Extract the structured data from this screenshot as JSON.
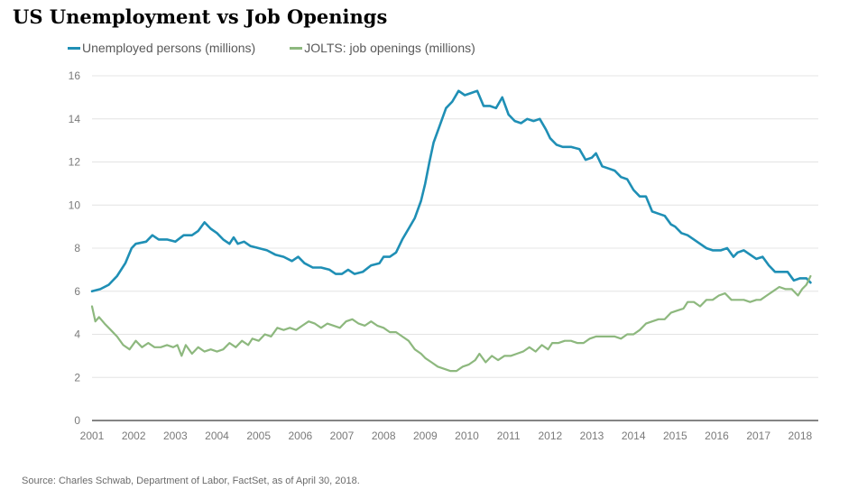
{
  "title": "US Unemployment vs Job Openings",
  "source": "Source: Charles Schwab, Department of Labor, FactSet, as of April 30, 2018.",
  "chart_data": {
    "type": "line",
    "title": "US Unemployment vs Job Openings",
    "xlabel": "",
    "ylabel": "",
    "xlim": [
      2001.0,
      2018.35
    ],
    "ylim": [
      0,
      16
    ],
    "grid": true,
    "legend_position": "top-left",
    "y_ticks": [
      0,
      2,
      4,
      6,
      8,
      10,
      12,
      14,
      16
    ],
    "x_ticks": [
      "2001",
      "2002",
      "2003",
      "2004",
      "2005",
      "2006",
      "2007",
      "2008",
      "2009",
      "2010",
      "2011",
      "2012",
      "2013",
      "2014",
      "2015",
      "2016",
      "2017",
      "2018"
    ],
    "series": [
      {
        "name": "Unemployed persons (millions)",
        "color": "#1f8fb5",
        "points": [
          [
            2001.0,
            6.0
          ],
          [
            2001.2,
            6.1
          ],
          [
            2001.4,
            6.3
          ],
          [
            2001.6,
            6.7
          ],
          [
            2001.8,
            7.3
          ],
          [
            2001.95,
            8.0
          ],
          [
            2002.05,
            8.2
          ],
          [
            2002.3,
            8.3
          ],
          [
            2002.45,
            8.6
          ],
          [
            2002.6,
            8.4
          ],
          [
            2002.8,
            8.4
          ],
          [
            2003.0,
            8.3
          ],
          [
            2003.2,
            8.6
          ],
          [
            2003.4,
            8.6
          ],
          [
            2003.55,
            8.8
          ],
          [
            2003.7,
            9.2
          ],
          [
            2003.85,
            8.9
          ],
          [
            2004.0,
            8.7
          ],
          [
            2004.15,
            8.4
          ],
          [
            2004.3,
            8.2
          ],
          [
            2004.4,
            8.5
          ],
          [
            2004.5,
            8.2
          ],
          [
            2004.65,
            8.3
          ],
          [
            2004.8,
            8.1
          ],
          [
            2005.0,
            8.0
          ],
          [
            2005.2,
            7.9
          ],
          [
            2005.4,
            7.7
          ],
          [
            2005.6,
            7.6
          ],
          [
            2005.8,
            7.4
          ],
          [
            2005.95,
            7.6
          ],
          [
            2006.1,
            7.3
          ],
          [
            2006.3,
            7.1
          ],
          [
            2006.5,
            7.1
          ],
          [
            2006.7,
            7.0
          ],
          [
            2006.85,
            6.8
          ],
          [
            2007.0,
            6.8
          ],
          [
            2007.15,
            7.0
          ],
          [
            2007.3,
            6.8
          ],
          [
            2007.5,
            6.9
          ],
          [
            2007.7,
            7.2
          ],
          [
            2007.9,
            7.3
          ],
          [
            2008.0,
            7.6
          ],
          [
            2008.15,
            7.6
          ],
          [
            2008.3,
            7.8
          ],
          [
            2008.45,
            8.4
          ],
          [
            2008.6,
            8.9
          ],
          [
            2008.75,
            9.4
          ],
          [
            2008.9,
            10.2
          ],
          [
            2009.0,
            11.0
          ],
          [
            2009.1,
            12.0
          ],
          [
            2009.2,
            12.9
          ],
          [
            2009.35,
            13.7
          ],
          [
            2009.5,
            14.5
          ],
          [
            2009.65,
            14.8
          ],
          [
            2009.8,
            15.3
          ],
          [
            2009.95,
            15.1
          ],
          [
            2010.1,
            15.2
          ],
          [
            2010.25,
            15.3
          ],
          [
            2010.4,
            14.6
          ],
          [
            2010.55,
            14.6
          ],
          [
            2010.7,
            14.5
          ],
          [
            2010.85,
            15.0
          ],
          [
            2011.0,
            14.2
          ],
          [
            2011.15,
            13.9
          ],
          [
            2011.3,
            13.8
          ],
          [
            2011.45,
            14.0
          ],
          [
            2011.6,
            13.9
          ],
          [
            2011.75,
            14.0
          ],
          [
            2011.9,
            13.5
          ],
          [
            2012.0,
            13.1
          ],
          [
            2012.15,
            12.8
          ],
          [
            2012.3,
            12.7
          ],
          [
            2012.5,
            12.7
          ],
          [
            2012.7,
            12.6
          ],
          [
            2012.85,
            12.1
          ],
          [
            2013.0,
            12.2
          ],
          [
            2013.1,
            12.4
          ],
          [
            2013.25,
            11.8
          ],
          [
            2013.4,
            11.7
          ],
          [
            2013.55,
            11.6
          ],
          [
            2013.7,
            11.3
          ],
          [
            2013.85,
            11.2
          ],
          [
            2014.0,
            10.7
          ],
          [
            2014.15,
            10.4
          ],
          [
            2014.3,
            10.4
          ],
          [
            2014.45,
            9.7
          ],
          [
            2014.6,
            9.6
          ],
          [
            2014.75,
            9.5
          ],
          [
            2014.9,
            9.1
          ],
          [
            2015.0,
            9.0
          ],
          [
            2015.15,
            8.7
          ],
          [
            2015.3,
            8.6
          ],
          [
            2015.45,
            8.4
          ],
          [
            2015.6,
            8.2
          ],
          [
            2015.75,
            8.0
          ],
          [
            2015.9,
            7.9
          ],
          [
            2016.1,
            7.9
          ],
          [
            2016.25,
            8.0
          ],
          [
            2016.4,
            7.6
          ],
          [
            2016.5,
            7.8
          ],
          [
            2016.65,
            7.9
          ],
          [
            2016.8,
            7.7
          ],
          [
            2016.95,
            7.5
          ],
          [
            2017.1,
            7.6
          ],
          [
            2017.25,
            7.2
          ],
          [
            2017.4,
            6.9
          ],
          [
            2017.55,
            6.9
          ],
          [
            2017.7,
            6.9
          ],
          [
            2017.85,
            6.5
          ],
          [
            2018.0,
            6.6
          ],
          [
            2018.15,
            6.6
          ],
          [
            2018.25,
            6.4
          ]
        ]
      },
      {
        "name": "JOLTS: job openings (millions)",
        "color": "#8db87e",
        "points": [
          [
            2001.0,
            5.3
          ],
          [
            2001.08,
            4.6
          ],
          [
            2001.17,
            4.8
          ],
          [
            2001.3,
            4.5
          ],
          [
            2001.45,
            4.2
          ],
          [
            2001.6,
            3.9
          ],
          [
            2001.75,
            3.5
          ],
          [
            2001.9,
            3.3
          ],
          [
            2002.05,
            3.7
          ],
          [
            2002.2,
            3.4
          ],
          [
            2002.35,
            3.6
          ],
          [
            2002.5,
            3.4
          ],
          [
            2002.65,
            3.4
          ],
          [
            2002.8,
            3.5
          ],
          [
            2002.95,
            3.4
          ],
          [
            2003.05,
            3.5
          ],
          [
            2003.15,
            3.0
          ],
          [
            2003.25,
            3.5
          ],
          [
            2003.4,
            3.1
          ],
          [
            2003.55,
            3.4
          ],
          [
            2003.7,
            3.2
          ],
          [
            2003.85,
            3.3
          ],
          [
            2004.0,
            3.2
          ],
          [
            2004.15,
            3.3
          ],
          [
            2004.3,
            3.6
          ],
          [
            2004.45,
            3.4
          ],
          [
            2004.6,
            3.7
          ],
          [
            2004.75,
            3.5
          ],
          [
            2004.85,
            3.8
          ],
          [
            2005.0,
            3.7
          ],
          [
            2005.15,
            4.0
          ],
          [
            2005.3,
            3.9
          ],
          [
            2005.45,
            4.3
          ],
          [
            2005.6,
            4.2
          ],
          [
            2005.75,
            4.3
          ],
          [
            2005.9,
            4.2
          ],
          [
            2006.05,
            4.4
          ],
          [
            2006.2,
            4.6
          ],
          [
            2006.35,
            4.5
          ],
          [
            2006.5,
            4.3
          ],
          [
            2006.65,
            4.5
          ],
          [
            2006.8,
            4.4
          ],
          [
            2006.95,
            4.3
          ],
          [
            2007.1,
            4.6
          ],
          [
            2007.25,
            4.7
          ],
          [
            2007.4,
            4.5
          ],
          [
            2007.55,
            4.4
          ],
          [
            2007.7,
            4.6
          ],
          [
            2007.85,
            4.4
          ],
          [
            2008.0,
            4.3
          ],
          [
            2008.15,
            4.1
          ],
          [
            2008.3,
            4.1
          ],
          [
            2008.45,
            3.9
          ],
          [
            2008.6,
            3.7
          ],
          [
            2008.75,
            3.3
          ],
          [
            2008.9,
            3.1
          ],
          [
            2009.0,
            2.9
          ],
          [
            2009.15,
            2.7
          ],
          [
            2009.3,
            2.5
          ],
          [
            2009.45,
            2.4
          ],
          [
            2009.6,
            2.3
          ],
          [
            2009.75,
            2.3
          ],
          [
            2009.9,
            2.5
          ],
          [
            2010.05,
            2.6
          ],
          [
            2010.2,
            2.8
          ],
          [
            2010.3,
            3.1
          ],
          [
            2010.45,
            2.7
          ],
          [
            2010.6,
            3.0
          ],
          [
            2010.75,
            2.8
          ],
          [
            2010.9,
            3.0
          ],
          [
            2011.05,
            3.0
          ],
          [
            2011.2,
            3.1
          ],
          [
            2011.35,
            3.2
          ],
          [
            2011.5,
            3.4
          ],
          [
            2011.65,
            3.2
          ],
          [
            2011.8,
            3.5
          ],
          [
            2011.95,
            3.3
          ],
          [
            2012.05,
            3.6
          ],
          [
            2012.2,
            3.6
          ],
          [
            2012.35,
            3.7
          ],
          [
            2012.5,
            3.7
          ],
          [
            2012.65,
            3.6
          ],
          [
            2012.8,
            3.6
          ],
          [
            2012.95,
            3.8
          ],
          [
            2013.1,
            3.9
          ],
          [
            2013.25,
            3.9
          ],
          [
            2013.4,
            3.9
          ],
          [
            2013.55,
            3.9
          ],
          [
            2013.7,
            3.8
          ],
          [
            2013.85,
            4.0
          ],
          [
            2014.0,
            4.0
          ],
          [
            2014.15,
            4.2
          ],
          [
            2014.3,
            4.5
          ],
          [
            2014.45,
            4.6
          ],
          [
            2014.6,
            4.7
          ],
          [
            2014.75,
            4.7
          ],
          [
            2014.9,
            5.0
          ],
          [
            2015.05,
            5.1
          ],
          [
            2015.2,
            5.2
          ],
          [
            2015.3,
            5.5
          ],
          [
            2015.45,
            5.5
          ],
          [
            2015.6,
            5.3
          ],
          [
            2015.75,
            5.6
          ],
          [
            2015.9,
            5.6
          ],
          [
            2016.05,
            5.8
          ],
          [
            2016.2,
            5.9
          ],
          [
            2016.35,
            5.6
          ],
          [
            2016.5,
            5.6
          ],
          [
            2016.65,
            5.6
          ],
          [
            2016.8,
            5.5
          ],
          [
            2016.95,
            5.6
          ],
          [
            2017.05,
            5.6
          ],
          [
            2017.2,
            5.8
          ],
          [
            2017.35,
            6.0
          ],
          [
            2017.5,
            6.2
          ],
          [
            2017.65,
            6.1
          ],
          [
            2017.8,
            6.1
          ],
          [
            2017.95,
            5.8
          ],
          [
            2018.05,
            6.1
          ],
          [
            2018.15,
            6.3
          ],
          [
            2018.25,
            6.7
          ]
        ]
      }
    ]
  }
}
